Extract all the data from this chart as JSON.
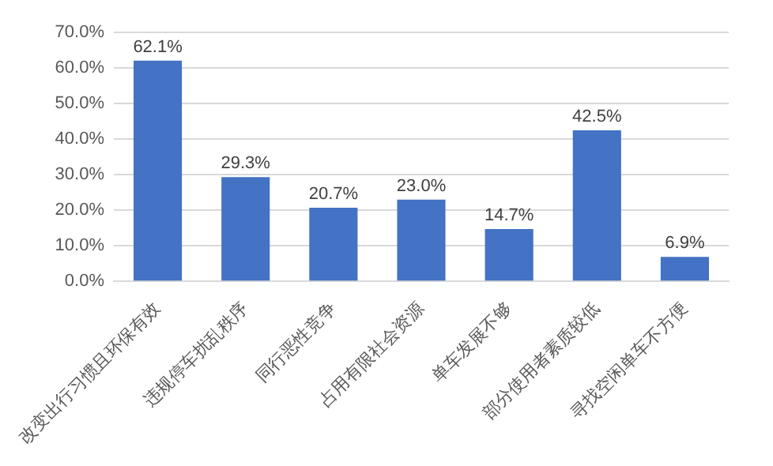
{
  "chart_data": {
    "type": "bar",
    "categories": [
      "改变出行习惯且环保有效",
      "违规停车扰乱秩序",
      "同行恶性竞争",
      "占用有限社会资源",
      "单车发展不够",
      "部分使用者素质较低",
      "寻找空闲单车不方便"
    ],
    "values": [
      62.1,
      29.3,
      20.7,
      23.0,
      14.7,
      42.5,
      6.9
    ],
    "value_labels": [
      "62.1%",
      "29.3%",
      "20.7%",
      "23.0%",
      "14.7%",
      "42.5%",
      "6.9%"
    ],
    "color": "#4472c4",
    "ylim": [
      0,
      70
    ],
    "yticks": [
      {
        "value": 0,
        "label": "0.0%"
      },
      {
        "value": 10,
        "label": "10.0%"
      },
      {
        "value": 20,
        "label": "20.0%"
      },
      {
        "value": 30,
        "label": "30.0%"
      },
      {
        "value": 40,
        "label": "40.0%"
      },
      {
        "value": 50,
        "label": "50.0%"
      },
      {
        "value": 60,
        "label": "60.0%"
      },
      {
        "value": 70,
        "label": "70.0%"
      }
    ],
    "grid": "y",
    "legend": false
  }
}
